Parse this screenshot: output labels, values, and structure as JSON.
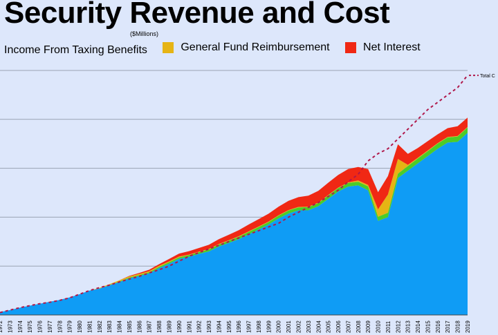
{
  "header": {
    "title": "Security Revenue and Cost",
    "subtitle": "($Millions)"
  },
  "legend": [
    {
      "label": "Income From Taxing Benefits",
      "color": "#0f9cf5",
      "swatch": false
    },
    {
      "label": "General Fund Reimbursement",
      "color": "#e6b414",
      "swatch": true
    },
    {
      "label": "Net Interest",
      "color": "#f02814",
      "swatch": true
    }
  ],
  "chart_data": {
    "type": "area",
    "title": "Security Revenue and Cost",
    "subtitle": "($Millions)",
    "x": [
      "1972",
      "1973",
      "1974",
      "1975",
      "1976",
      "1977",
      "1978",
      "1979",
      "1980",
      "1981",
      "1982",
      "1983",
      "1984",
      "1985",
      "1986",
      "1987",
      "1988",
      "1989",
      "1990",
      "1991",
      "1992",
      "1993",
      "1994",
      "1995",
      "1996",
      "1997",
      "1998",
      "1999",
      "2000",
      "2001",
      "2002",
      "2003",
      "2004",
      "2005",
      "2006",
      "2007",
      "2008",
      "2009",
      "2010",
      "2011",
      "2012",
      "2013",
      "2014",
      "2015",
      "2016",
      "2017",
      "2018",
      "2019"
    ],
    "ylim": [
      0,
      1000
    ],
    "grid": true,
    "series": [
      {
        "name": "Income From Taxing Benefits",
        "color": "#0f9cf5",
        "values": [
          12,
          20,
          30,
          38,
          46,
          54,
          62,
          72,
          85,
          100,
          108,
          122,
          135,
          150,
          160,
          170,
          192,
          210,
          230,
          238,
          250,
          260,
          280,
          295,
          310,
          330,
          350,
          370,
          395,
          415,
          428,
          428,
          445,
          475,
          505,
          525,
          530,
          510,
          385,
          400,
          560,
          590,
          620,
          650,
          680,
          705,
          708,
          745
        ]
      },
      {
        "name": "",
        "color": "#4ccc28",
        "values": [
          0,
          0,
          0,
          0,
          0,
          0,
          0,
          0,
          0,
          0,
          0,
          0,
          2,
          3,
          3,
          5,
          5,
          6,
          6,
          7,
          7,
          8,
          8,
          9,
          10,
          10,
          10,
          10,
          11,
          12,
          12,
          13,
          13,
          14,
          14,
          15,
          15,
          16,
          17,
          18,
          18,
          19,
          20,
          20,
          21,
          21,
          22,
          22
        ]
      },
      {
        "name": "General Fund Reimbursement",
        "color": "#e6b414",
        "values": [
          0,
          0,
          0,
          0,
          0,
          0,
          0,
          0,
          0,
          0,
          3,
          4,
          5,
          5,
          5,
          4,
          4,
          3,
          3,
          2,
          2,
          2,
          2,
          2,
          2,
          2,
          2,
          2,
          2,
          2,
          2,
          2,
          2,
          2,
          2,
          2,
          5,
          6,
          30,
          75,
          60,
          5,
          3,
          3,
          2,
          2,
          2,
          2
        ]
      },
      {
        "name": "Net Interest",
        "color": "#f02814",
        "values": [
          0,
          0,
          0,
          0,
          0,
          0,
          0,
          0,
          0,
          0,
          0,
          0,
          0,
          2,
          4,
          6,
          7,
          10,
          12,
          14,
          15,
          17,
          20,
          22,
          25,
          28,
          30,
          32,
          35,
          38,
          40,
          45,
          48,
          50,
          52,
          55,
          55,
          65,
          70,
          75,
          60,
          45,
          40,
          38,
          36,
          36,
          40,
          38
        ]
      }
    ],
    "total_cost": {
      "name": "Total C",
      "color": "#b0184a",
      "values": [
        10,
        20,
        30,
        38,
        46,
        52,
        60,
        70,
        85,
        100,
        112,
        122,
        135,
        147,
        158,
        172,
        185,
        200,
        220,
        240,
        255,
        270,
        285,
        300,
        315,
        330,
        345,
        360,
        375,
        400,
        420,
        440,
        460,
        485,
        510,
        545,
        575,
        630,
        660,
        680,
        720,
        760,
        800,
        840,
        870,
        900,
        930,
        980
      ]
    }
  }
}
